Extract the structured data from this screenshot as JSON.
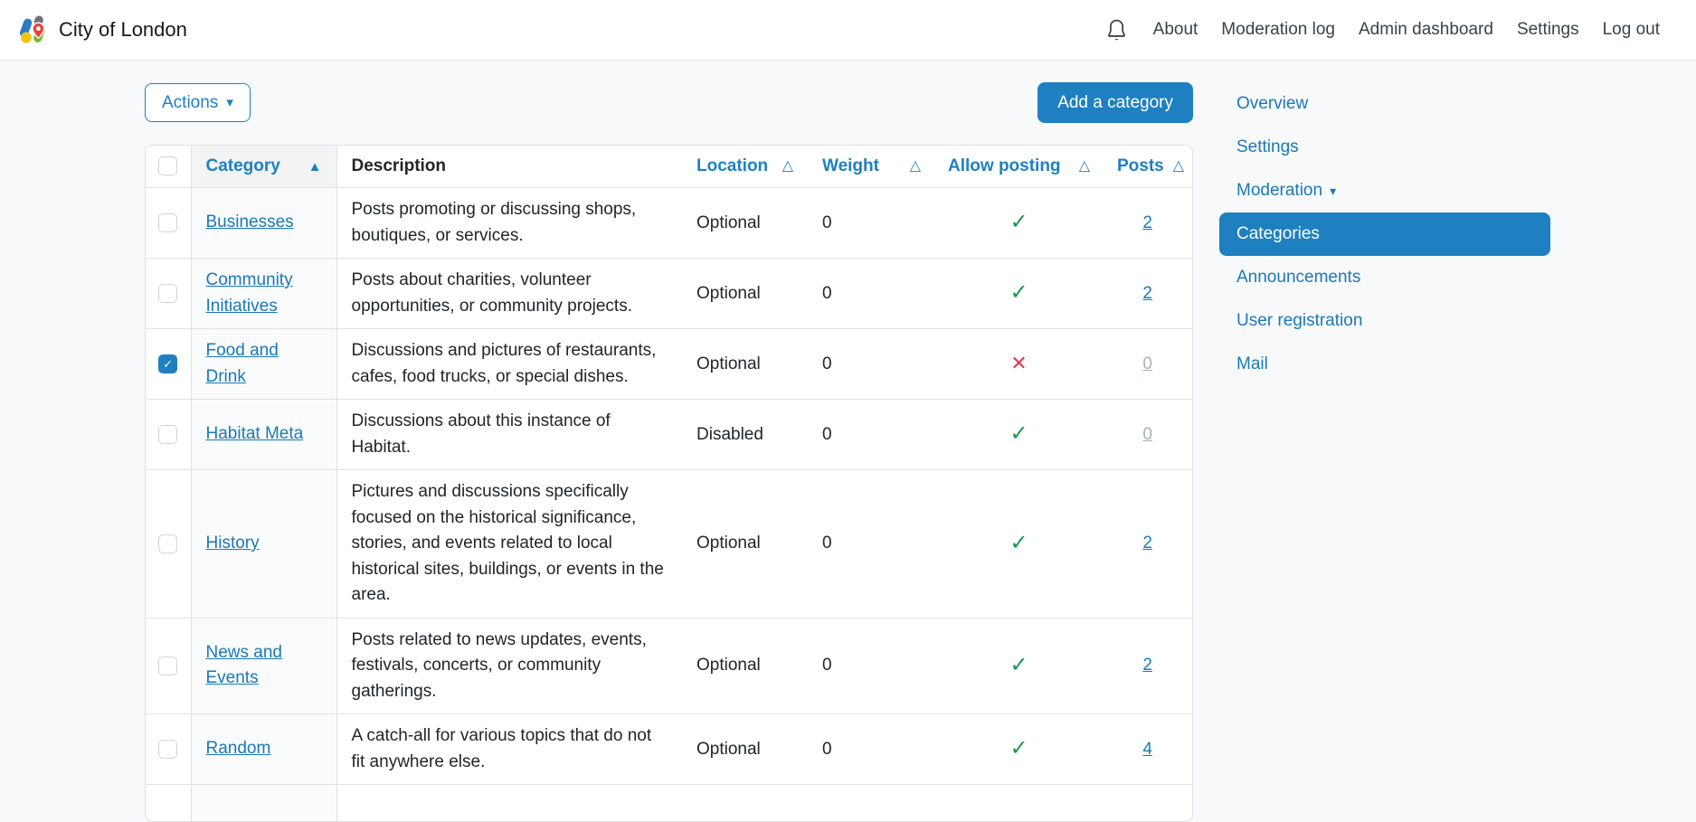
{
  "navbar": {
    "brand": "City of London",
    "links": [
      "About",
      "Moderation log",
      "Admin dashboard",
      "Settings",
      "Log out"
    ]
  },
  "toolbar": {
    "actions_label": "Actions",
    "add_category_label": "Add a category"
  },
  "table": {
    "columns": [
      {
        "label": "",
        "sort": null
      },
      {
        "label": "Category",
        "sort": "asc"
      },
      {
        "label": "Description",
        "sort": null
      },
      {
        "label": "Location",
        "sort": "sortable"
      },
      {
        "label": "Weight",
        "sort": "sortable"
      },
      {
        "label": "Allow posting",
        "sort": "sortable"
      },
      {
        "label": "Posts",
        "sort": "sortable"
      }
    ],
    "rows": [
      {
        "name": "Businesses",
        "description": "Posts promoting or discussing shops, boutiques, or services.",
        "location": "Optional",
        "weight": "0",
        "allow_posting": true,
        "posts": "2",
        "posts_active": true,
        "checked": false
      },
      {
        "name": "Community Initiatives",
        "description": "Posts about charities, volunteer opportunities, or community projects.",
        "location": "Optional",
        "weight": "0",
        "allow_posting": true,
        "posts": "2",
        "posts_active": true,
        "checked": false
      },
      {
        "name": "Food and Drink",
        "description": "Discussions and pictures of restaurants, cafes, food trucks, or special dishes.",
        "location": "Optional",
        "weight": "0",
        "allow_posting": false,
        "posts": "0",
        "posts_active": false,
        "checked": true
      },
      {
        "name": "Habitat Meta",
        "description": "Discussions about this instance of Habitat.",
        "location": "Disabled",
        "weight": "0",
        "allow_posting": true,
        "posts": "0",
        "posts_active": false,
        "checked": false
      },
      {
        "name": "History",
        "description": "Pictures and discussions specifically focused on the historical significance, stories, and events related to local historical sites, buildings, or events in the area.",
        "location": "Optional",
        "weight": "0",
        "allow_posting": true,
        "posts": "2",
        "posts_active": true,
        "checked": false
      },
      {
        "name": "News and Events",
        "description": "Posts related to news updates, events, festivals, concerts, or community gatherings.",
        "location": "Optional",
        "weight": "0",
        "allow_posting": true,
        "posts": "2",
        "posts_active": true,
        "checked": false
      },
      {
        "name": "Random",
        "description": "A catch-all for various topics that do not fit anywhere else.",
        "location": "Optional",
        "weight": "0",
        "allow_posting": true,
        "posts": "4",
        "posts_active": true,
        "checked": false
      },
      {
        "name": "",
        "description": "",
        "location": "",
        "weight": "",
        "allow_posting": null,
        "posts": "",
        "posts_active": false,
        "checked": false,
        "partial": true
      }
    ]
  },
  "sidebar": {
    "items": [
      {
        "label": "Overview",
        "active": false,
        "caret": false
      },
      {
        "label": "Settings",
        "active": false,
        "caret": false
      },
      {
        "label": "Moderation",
        "active": false,
        "caret": true
      },
      {
        "label": "Categories",
        "active": true,
        "caret": false
      },
      {
        "label": "Announcements",
        "active": false,
        "caret": false
      },
      {
        "label": "User registration",
        "active": false,
        "caret": false
      },
      {
        "label": "Mail",
        "active": false,
        "caret": false
      }
    ]
  },
  "icons": {
    "notification": "bell",
    "sort_asc": "▲",
    "sort_sortable": "△",
    "allow_yes": "✓",
    "allow_no": "✕",
    "caret_down": "▾",
    "checkbox_check": "✓"
  },
  "colors": {
    "accent": "#1e80c0",
    "link": "#1a79b8",
    "green": "#17984b",
    "red": "#dd3c4d",
    "muted_link": "#a9b1b9",
    "border": "#dee2e6"
  }
}
